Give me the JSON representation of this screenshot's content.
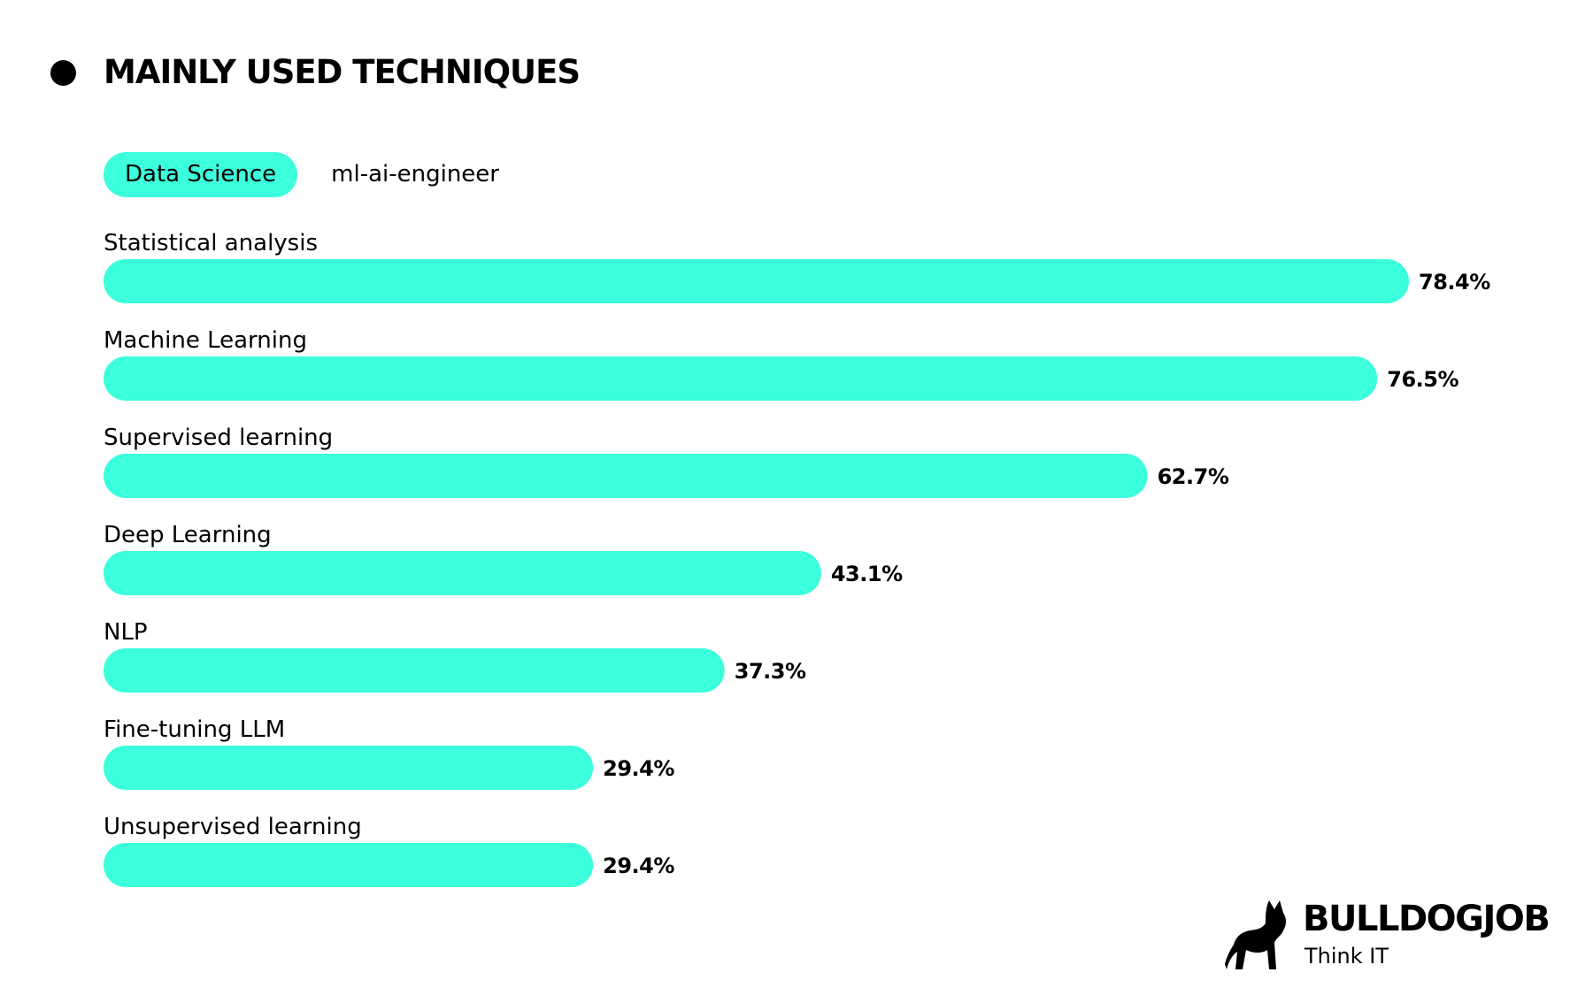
{
  "header": {
    "title": "MAINLY USED TECHNIQUES"
  },
  "tabs": [
    {
      "label": "Data Science",
      "active": true
    },
    {
      "label": "ml-ai-engineer",
      "active": false
    }
  ],
  "colors": {
    "bar": "#3cffdc",
    "text": "#000000",
    "background": "#ffffff"
  },
  "chart_data": {
    "type": "bar",
    "orientation": "horizontal",
    "title": "",
    "xlabel": "",
    "ylabel": "",
    "xlim": [
      0,
      78.4
    ],
    "grid": false,
    "categories": [
      "Statistical analysis",
      "Machine Learning",
      "Supervised learning",
      "Deep Learning",
      "NLP",
      "Fine-tuning LLM",
      "Unsupervised learning"
    ],
    "values": [
      78.4,
      76.5,
      62.7,
      43.1,
      37.3,
      29.4,
      29.4
    ],
    "value_labels": [
      "78.4%",
      "76.5%",
      "62.7%",
      "43.1%",
      "37.3%",
      "29.4%",
      "29.4%"
    ]
  },
  "logo": {
    "name": "BULLDOGJOB",
    "tagline": "Think IT",
    "icon": "bulldog-icon"
  }
}
